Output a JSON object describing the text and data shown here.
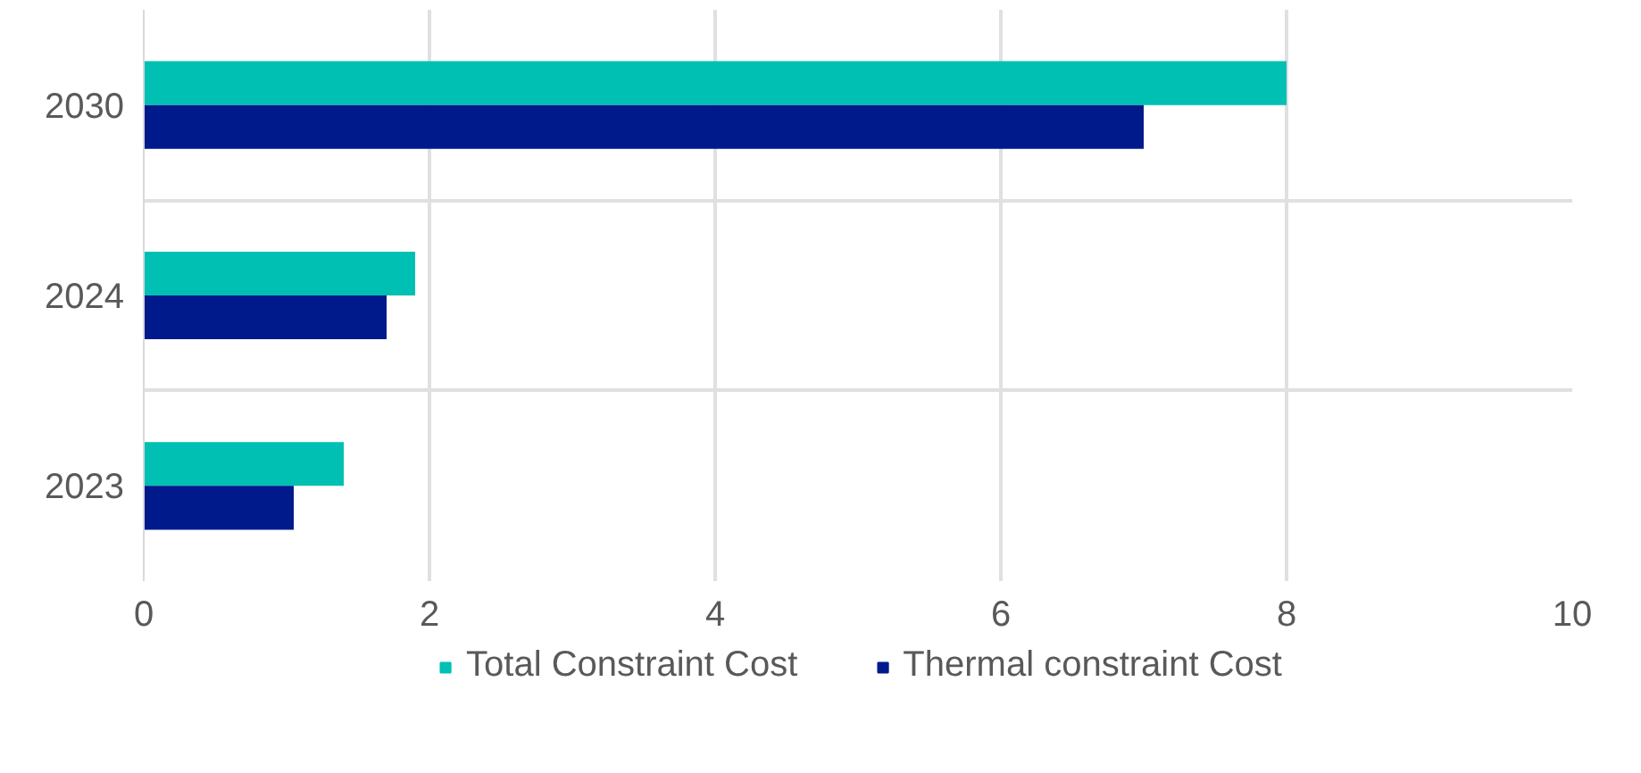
{
  "chart_data": {
    "type": "bar",
    "orientation": "horizontal",
    "categories": [
      "2030",
      "2024",
      "2023"
    ],
    "series": [
      {
        "name": "Total Constraint Cost",
        "color": "#00bfb3",
        "values": [
          8,
          1.9,
          1.4
        ]
      },
      {
        "name": "Thermal constraint Cost",
        "color": "#001a8c",
        "values": [
          7,
          1.7,
          1.05
        ]
      }
    ],
    "xlim": [
      0,
      10
    ],
    "xticks": [
      0,
      2,
      4,
      6,
      8,
      10
    ],
    "grid": true,
    "legend": "bottom"
  }
}
